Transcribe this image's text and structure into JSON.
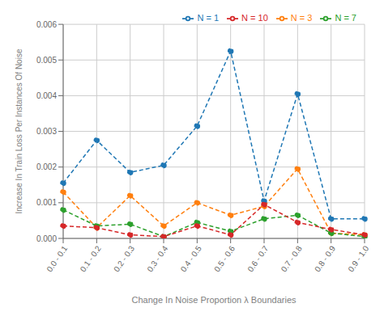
{
  "chart_data": {
    "type": "line",
    "xlabel": "Change In Noise Proportion λ Boundaries",
    "ylabel": "Increase In Train Loss Per Instances Of Noise",
    "categories": [
      "0.0 - 0.1",
      "0.1 - 0.2",
      "0.2 - 0.3",
      "0.3 - 0.4",
      "0.4 - 0.5",
      "0.5 - 0.6",
      "0.6 - 0.7",
      "0.7 - 0.8",
      "0.8 - 0.9",
      "0.9 - 1.0"
    ],
    "series": [
      {
        "name": "N = 1",
        "color": "#1f77b4",
        "values": [
          0.00155,
          0.00275,
          0.00185,
          0.00205,
          0.00315,
          0.00525,
          0.00105,
          0.00405,
          0.00055,
          0.00055
        ]
      },
      {
        "name": "N = 3",
        "color": "#ff7f0e",
        "values": [
          0.0013,
          0.0003,
          0.0012,
          0.00035,
          0.001,
          0.00065,
          0.0009,
          0.00195,
          0.00015,
          0.0001
        ]
      },
      {
        "name": "N = 7",
        "color": "#2ca02c",
        "values": [
          0.0008,
          0.00035,
          0.0004,
          5e-05,
          0.00045,
          0.0002,
          0.00055,
          0.00065,
          0.00015,
          5e-05
        ]
      },
      {
        "name": "N = 10",
        "color": "#d62728",
        "values": [
          0.00035,
          0.0003,
          0.0001,
          5e-05,
          0.00035,
          0.0001,
          0.00095,
          0.00045,
          0.00025,
          0.0001
        ]
      }
    ],
    "ylim": [
      0,
      0.006
    ],
    "yticks": [
      {
        "value": 0,
        "label": "0.000"
      },
      0.001,
      0.002,
      0.003,
      0.004,
      0.005,
      0.006
    ],
    "grid": true,
    "legend": "upper right",
    "marker": "circle",
    "line_style": "dashed"
  }
}
